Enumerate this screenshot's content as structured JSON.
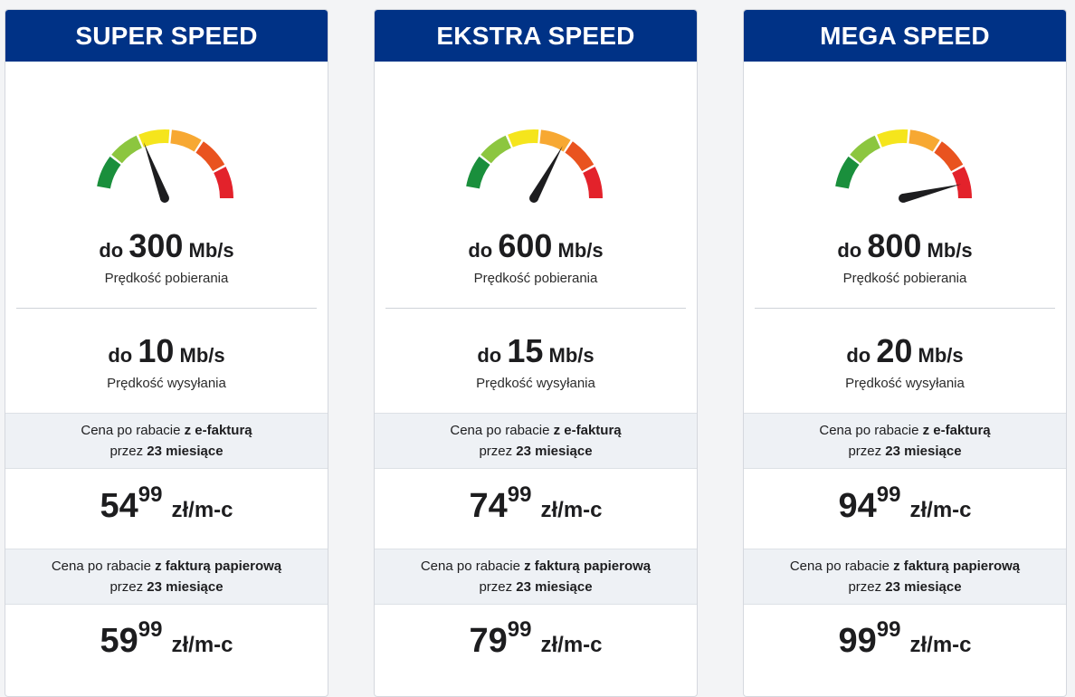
{
  "plans": [
    {
      "name": "SUPER SPEED",
      "gauge_level": 0.35,
      "download": {
        "prefix": "do",
        "value": "300",
        "unit": "Mb/s",
        "label": "Prędkość pobierania"
      },
      "upload": {
        "prefix": "do",
        "value": "10",
        "unit": "Mb/s",
        "label": "Prędkość wysyłania"
      },
      "efaktura": {
        "label_pre": "Cena po rabacie ",
        "label_bold": "z e-fakturą",
        "period_pre": "przez ",
        "period_bold": "23 miesiące",
        "price_whole": "54",
        "price_dec": "99",
        "price_unit": "zł/m-c"
      },
      "paper": {
        "label_pre": "Cena po rabacie ",
        "label_bold": "z fakturą papierową",
        "period_pre": "przez ",
        "period_bold": "23 miesiące",
        "price_whole": "59",
        "price_dec": "99",
        "price_unit": "zł/m-c"
      }
    },
    {
      "name": "EKSTRA SPEED",
      "gauge_level": 0.64,
      "download": {
        "prefix": "do",
        "value": "600",
        "unit": "Mb/s",
        "label": "Prędkość pobierania"
      },
      "upload": {
        "prefix": "do",
        "value": "15",
        "unit": "Mb/s",
        "label": "Prędkość wysyłania"
      },
      "efaktura": {
        "label_pre": "Cena po rabacie ",
        "label_bold": "z e-fakturą",
        "period_pre": "przez ",
        "period_bold": "23 miesiące",
        "price_whole": "74",
        "price_dec": "99",
        "price_unit": "zł/m-c"
      },
      "paper": {
        "label_pre": "Cena po rabacie ",
        "label_bold": "z fakturą papierową",
        "period_pre": "przez ",
        "period_bold": "23 miesiące",
        "price_whole": "79",
        "price_dec": "99",
        "price_unit": "zł/m-c"
      }
    },
    {
      "name": "MEGA SPEED",
      "gauge_level": 0.92,
      "download": {
        "prefix": "do",
        "value": "800",
        "unit": "Mb/s",
        "label": "Prędkość pobierania"
      },
      "upload": {
        "prefix": "do",
        "value": "20",
        "unit": "Mb/s",
        "label": "Prędkość wysyłania"
      },
      "efaktura": {
        "label_pre": "Cena po rabacie ",
        "label_bold": "z e-fakturą",
        "period_pre": "przez ",
        "period_bold": "23 miesiące",
        "price_whole": "94",
        "price_dec": "99",
        "price_unit": "zł/m-c"
      },
      "paper": {
        "label_pre": "Cena po rabacie ",
        "label_bold": "z fakturą papierową",
        "period_pre": "przez ",
        "period_bold": "23 miesiące",
        "price_whole": "99",
        "price_dec": "99",
        "price_unit": "zł/m-c"
      }
    }
  ],
  "colors": {
    "header_bg": "#003286",
    "header_text": "#ffffff",
    "label_bg": "#eef1f5",
    "gauge_segments": [
      "#1a8f3c",
      "#8cc63f",
      "#f5e51c",
      "#f7a832",
      "#e9531f",
      "#e3222b"
    ],
    "needle": "#1d1d1f"
  }
}
